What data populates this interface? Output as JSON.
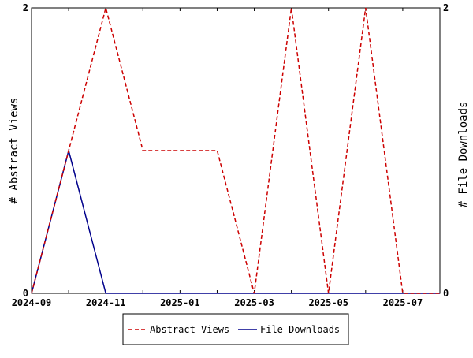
{
  "chart_data": {
    "type": "line",
    "x": [
      "2024-09",
      "2024-10",
      "2024-11",
      "2024-12",
      "2025-01",
      "2025-02",
      "2025-03",
      "2025-04",
      "2025-05",
      "2025-06",
      "2025-07",
      "2025-08"
    ],
    "x_tick_labels": [
      "2024-09",
      "2024-11",
      "2025-01",
      "2025-03",
      "2025-05",
      "2025-07"
    ],
    "series": [
      {
        "name": "Abstract Views",
        "axis": "left",
        "color": "#cc0000",
        "style": "dashed",
        "values": [
          0,
          1,
          2,
          1,
          1,
          1,
          0,
          2,
          0,
          2,
          0,
          0
        ]
      },
      {
        "name": "File Downloads",
        "axis": "right",
        "color": "#00008b",
        "style": "solid",
        "values": [
          0,
          1,
          0,
          0,
          0,
          0,
          0,
          0,
          0,
          0,
          0,
          0
        ]
      }
    ],
    "ylabel_left": "# Abstract Views",
    "ylabel_right": "# File Downloads",
    "ylim_left": [
      0,
      2
    ],
    "ylim_right": [
      0,
      2
    ],
    "y_tick_labels_left": [
      "0",
      "2"
    ],
    "y_tick_labels_right": [
      "0",
      "2"
    ],
    "grid": false,
    "legend_position": "bottom-center"
  }
}
